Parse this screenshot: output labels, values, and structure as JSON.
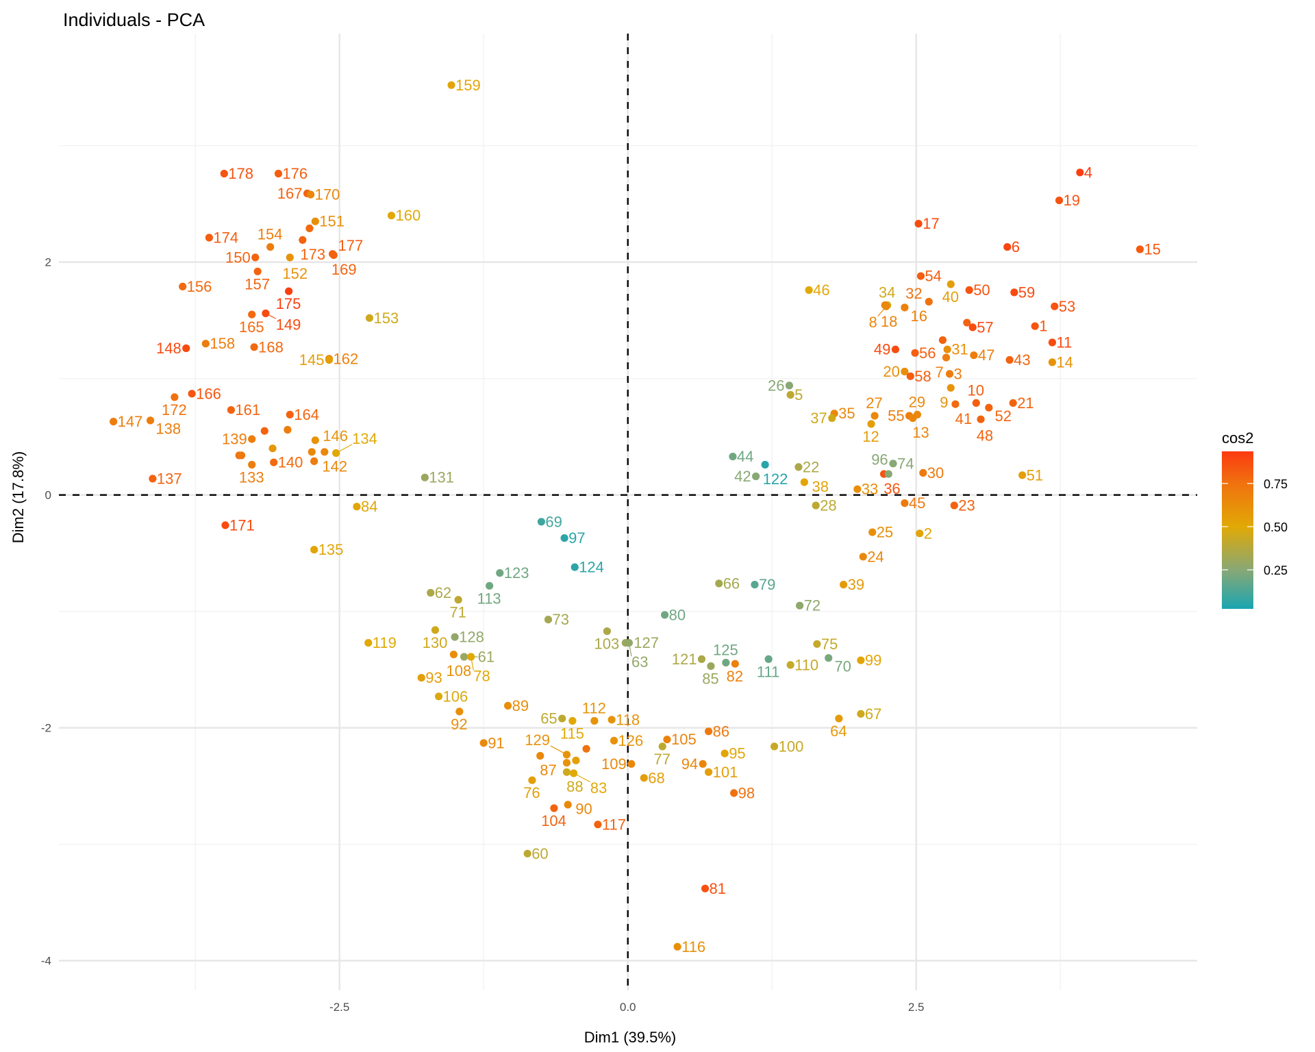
{
  "chart_data": {
    "type": "scatter",
    "title": "Individuals - PCA",
    "xlabel": "Dim1 (39.5%)",
    "ylabel": "Dim2 (17.8%)",
    "xlim": [
      -4.92,
      4.93
    ],
    "ylim": [
      -4.25,
      3.96
    ],
    "x_ticks": [
      {
        "value": -2.5,
        "label": "-2.5"
      },
      {
        "value": 0,
        "label": "0.0"
      },
      {
        "value": 2.5,
        "label": "2.5"
      }
    ],
    "y_ticks": [
      {
        "value": -4,
        "label": "-4"
      },
      {
        "value": -2,
        "label": "-2"
      },
      {
        "value": 0,
        "label": "0"
      },
      {
        "value": 2,
        "label": "2"
      }
    ],
    "x_minor": [
      -3.75,
      -1.25,
      1.25,
      3.75
    ],
    "y_minor": [
      -3,
      -1,
      1,
      3
    ],
    "grid": true,
    "reference_lines": {
      "x": 0,
      "y": 0,
      "style": "dashed"
    },
    "legend": {
      "title": "cos2",
      "placement": "right",
      "range": [
        0.024,
        0.936
      ],
      "ticks": [
        {
          "value": 0.75,
          "label": "0.75"
        },
        {
          "value": 0.5,
          "label": "0.50"
        },
        {
          "value": 0.25,
          "label": "0.25"
        }
      ],
      "colors": [
        {
          "value": 0.024,
          "color": "#1AA5B1"
        },
        {
          "value": 0.25,
          "color": "#88A875"
        },
        {
          "value": 0.5,
          "color": "#E1A906"
        },
        {
          "value": 0.75,
          "color": "#F0720F"
        },
        {
          "value": 0.936,
          "color": "#FC3A10"
        }
      ]
    },
    "points": [
      [
        "4",
        3.92,
        2.77,
        0.92
      ],
      [
        "19",
        3.74,
        2.53,
        0.85
      ],
      [
        "15",
        4.44,
        2.11,
        0.83
      ],
      [
        "6",
        3.29,
        2.13,
        0.9
      ],
      [
        "17",
        2.52,
        2.33,
        0.88
      ],
      [
        "54",
        2.54,
        1.88,
        0.82
      ],
      [
        "40",
        2.8,
        1.81,
        0.55
      ],
      [
        "50",
        2.96,
        1.76,
        0.85
      ],
      [
        "59",
        3.35,
        1.74,
        0.88
      ],
      [
        "53",
        3.7,
        1.62,
        0.85
      ],
      [
        "46",
        1.57,
        1.76,
        0.5
      ],
      [
        "34",
        2.25,
        1.63,
        0.45
      ],
      [
        "18",
        2.23,
        1.63,
        0.68
      ],
      [
        "8",
        2.24,
        1.62,
        0.65
      ],
      [
        "16",
        2.4,
        1.61,
        0.68
      ],
      [
        "32",
        2.61,
        1.66,
        0.75
      ],
      [
        "",
        2.94,
        1.48,
        0.8
      ],
      [
        "57",
        2.99,
        1.44,
        0.88
      ],
      [
        "1",
        3.53,
        1.45,
        0.85
      ],
      [
        "11",
        3.68,
        1.31,
        0.88
      ],
      [
        "43",
        3.31,
        1.16,
        0.8
      ],
      [
        "14",
        3.68,
        1.14,
        0.6
      ],
      [
        "49",
        2.32,
        1.25,
        0.88
      ],
      [
        "56",
        2.49,
        1.22,
        0.82
      ],
      [
        "",
        2.73,
        1.33,
        0.8
      ],
      [
        "31",
        2.77,
        1.25,
        0.62
      ],
      [
        "7",
        2.76,
        1.18,
        0.7
      ],
      [
        "20",
        2.4,
        1.06,
        0.62
      ],
      [
        "58",
        2.45,
        1.02,
        0.82
      ],
      [
        "3",
        2.79,
        1.04,
        0.7
      ],
      [
        "47",
        3.0,
        1.2,
        0.7
      ],
      [
        "9",
        2.8,
        0.92,
        0.6
      ],
      [
        "41",
        2.84,
        0.78,
        0.78
      ],
      [
        "10",
        3.02,
        0.79,
        0.82
      ],
      [
        "52",
        3.13,
        0.75,
        0.8
      ],
      [
        "21",
        3.34,
        0.79,
        0.8
      ],
      [
        "48",
        3.06,
        0.65,
        0.8
      ],
      [
        "55",
        2.44,
        0.68,
        0.7
      ],
      [
        "29",
        2.51,
        0.69,
        0.65
      ],
      [
        "13",
        2.47,
        0.66,
        0.66
      ],
      [
        "27",
        2.14,
        0.68,
        0.65
      ],
      [
        "12",
        2.11,
        0.61,
        0.55
      ],
      [
        "26",
        1.4,
        0.94,
        0.25
      ],
      [
        "5",
        1.41,
        0.86,
        0.4
      ],
      [
        "35",
        1.79,
        0.7,
        0.65
      ],
      [
        "37",
        1.77,
        0.66,
        0.45
      ],
      [
        "44",
        0.91,
        0.33,
        0.2
      ],
      [
        "122",
        1.19,
        0.26,
        0.05
      ],
      [
        "42",
        1.11,
        0.16,
        0.25
      ],
      [
        "22",
        1.48,
        0.24,
        0.35
      ],
      [
        "38",
        1.53,
        0.11,
        0.52
      ],
      [
        "28",
        1.63,
        -0.09,
        0.4
      ],
      [
        "33",
        1.99,
        0.05,
        0.62
      ],
      [
        "36",
        2.22,
        0.18,
        0.85
      ],
      [
        "96",
        2.26,
        0.18,
        0.25
      ],
      [
        "74",
        2.3,
        0.27,
        0.25
      ],
      [
        "30",
        2.56,
        0.19,
        0.72
      ],
      [
        "45",
        2.4,
        -0.07,
        0.72
      ],
      [
        "23",
        2.83,
        -0.09,
        0.8
      ],
      [
        "2",
        2.53,
        -0.33,
        0.52
      ],
      [
        "51",
        3.42,
        0.17,
        0.55
      ],
      [
        "25",
        2.12,
        -0.32,
        0.62
      ],
      [
        "24",
        2.04,
        -0.53,
        0.65
      ],
      [
        "39",
        1.87,
        -0.77,
        0.57
      ],
      [
        "80",
        0.32,
        -1.03,
        0.2
      ],
      [
        "66",
        0.79,
        -0.76,
        0.33
      ],
      [
        "79",
        1.1,
        -0.77,
        0.15
      ],
      [
        "72",
        1.49,
        -0.95,
        0.27
      ],
      [
        "121",
        0.64,
        -1.41,
        0.35
      ],
      [
        "85",
        0.72,
        -1.47,
        0.3
      ],
      [
        "125",
        0.85,
        -1.44,
        0.2
      ],
      [
        "82",
        0.93,
        -1.45,
        0.68
      ],
      [
        "111",
        1.22,
        -1.41,
        0.18
      ],
      [
        "110",
        1.41,
        -1.46,
        0.42
      ],
      [
        "75",
        1.64,
        -1.28,
        0.42
      ],
      [
        "70",
        1.74,
        -1.4,
        0.22
      ],
      [
        "99",
        2.02,
        -1.42,
        0.52
      ],
      [
        "67",
        2.02,
        -1.88,
        0.45
      ],
      [
        "64",
        1.83,
        -1.92,
        0.57
      ],
      [
        "105",
        0.34,
        -2.1,
        0.68
      ],
      [
        "77",
        0.3,
        -2.16,
        0.4
      ],
      [
        "86",
        0.7,
        -2.03,
        0.72
      ],
      [
        "95",
        0.84,
        -2.22,
        0.52
      ],
      [
        "94",
        0.65,
        -2.31,
        0.66
      ],
      [
        "101",
        0.7,
        -2.38,
        0.55
      ],
      [
        "98",
        0.92,
        -2.56,
        0.75
      ],
      [
        "100",
        1.27,
        -2.16,
        0.43
      ],
      [
        "68",
        0.14,
        -2.43,
        0.55
      ],
      [
        "81",
        0.67,
        -3.38,
        0.86
      ],
      [
        "116",
        0.43,
        -3.88,
        0.62
      ],
      [
        "109",
        0.03,
        -2.31,
        0.65
      ],
      [
        "69",
        -0.75,
        -0.23,
        0.1
      ],
      [
        "97",
        -0.55,
        -0.37,
        0.06
      ],
      [
        "124",
        -0.46,
        -0.62,
        0.06
      ],
      [
        "123",
        -1.11,
        -0.67,
        0.2
      ],
      [
        "113",
        -1.2,
        -0.78,
        0.2
      ],
      [
        "62",
        -1.71,
        -0.84,
        0.35
      ],
      [
        "71",
        -1.47,
        -0.9,
        0.4
      ],
      [
        "130",
        -1.67,
        -1.16,
        0.45
      ],
      [
        "128",
        -1.5,
        -1.22,
        0.28
      ],
      [
        "119",
        -2.25,
        -1.27,
        0.5
      ],
      [
        "108",
        -1.51,
        -1.37,
        0.62
      ],
      [
        "61",
        -1.42,
        -1.39,
        0.3
      ],
      [
        "78",
        -1.36,
        -1.39,
        0.5
      ],
      [
        "93",
        -1.79,
        -1.57,
        0.55
      ],
      [
        "73",
        -0.69,
        -1.07,
        0.33
      ],
      [
        "103",
        -0.18,
        -1.17,
        0.35
      ],
      [
        "127",
        -0.02,
        -1.27,
        0.3
      ],
      [
        "63",
        0.01,
        -1.27,
        0.28
      ],
      [
        "106",
        -1.64,
        -1.73,
        0.48
      ],
      [
        "92",
        -1.46,
        -1.86,
        0.62
      ],
      [
        "89",
        -1.04,
        -1.81,
        0.62
      ],
      [
        "91",
        -1.25,
        -2.13,
        0.65
      ],
      [
        "65",
        -0.57,
        -1.92,
        0.4
      ],
      [
        "115",
        -0.48,
        -1.94,
        0.5
      ],
      [
        "112",
        -0.29,
        -1.94,
        0.6
      ],
      [
        "118",
        -0.14,
        -1.93,
        0.6
      ],
      [
        "126",
        -0.12,
        -2.11,
        0.6
      ],
      [
        "",
        -0.36,
        -2.18,
        0.75
      ],
      [
        "129",
        -0.53,
        -2.23,
        0.6
      ],
      [
        "",
        -0.45,
        -2.28,
        0.55
      ],
      [
        "",
        -0.53,
        -2.3,
        0.6
      ],
      [
        "87",
        -0.76,
        -2.24,
        0.65
      ],
      [
        "88",
        -0.53,
        -2.38,
        0.45
      ],
      [
        "83",
        -0.47,
        -2.39,
        0.5
      ],
      [
        "76",
        -0.83,
        -2.45,
        0.55
      ],
      [
        "104",
        -0.64,
        -2.69,
        0.8
      ],
      [
        "90",
        -0.52,
        -2.66,
        0.65
      ],
      [
        "117",
        -0.26,
        -2.83,
        0.8
      ],
      [
        "60",
        -0.87,
        -3.08,
        0.4
      ],
      [
        "178",
        -3.5,
        2.76,
        0.85
      ],
      [
        "176",
        -3.03,
        2.76,
        0.82
      ],
      [
        "167",
        -2.78,
        2.59,
        0.8
      ],
      [
        "170",
        -2.75,
        2.58,
        0.65
      ],
      [
        "151",
        -2.71,
        2.35,
        0.62
      ],
      [
        "",
        -2.76,
        2.29,
        0.78
      ],
      [
        "173",
        -2.82,
        2.19,
        0.8
      ],
      [
        "174",
        -3.63,
        2.21,
        0.82
      ],
      [
        "154",
        -3.1,
        2.13,
        0.7
      ],
      [
        "152",
        -2.93,
        2.04,
        0.6
      ],
      [
        "177",
        -2.56,
        2.07,
        0.82
      ],
      [
        "169",
        -2.55,
        2.06,
        0.8
      ],
      [
        "150",
        -3.23,
        2.04,
        0.8
      ],
      [
        "157",
        -3.21,
        1.92,
        0.8
      ],
      [
        "175",
        -2.94,
        1.75,
        0.92
      ],
      [
        "156",
        -3.86,
        1.79,
        0.78
      ],
      [
        "165",
        -3.26,
        1.55,
        0.78
      ],
      [
        "149",
        -3.14,
        1.56,
        0.88
      ],
      [
        "158",
        -3.66,
        1.3,
        0.7
      ],
      [
        "148",
        -3.83,
        1.26,
        0.88
      ],
      [
        "168",
        -3.24,
        1.27,
        0.78
      ],
      [
        "162",
        -2.59,
        1.17,
        0.68
      ],
      [
        "145",
        -2.59,
        1.16,
        0.55
      ],
      [
        "166",
        -3.78,
        0.87,
        0.85
      ],
      [
        "172",
        -3.93,
        0.84,
        0.75
      ],
      [
        "147",
        -4.46,
        0.63,
        0.7
      ],
      [
        "138",
        -4.14,
        0.64,
        0.7
      ],
      [
        "161",
        -3.44,
        0.73,
        0.8
      ],
      [
        "164",
        -2.93,
        0.69,
        0.8
      ],
      [
        "",
        -2.95,
        0.56,
        0.7
      ],
      [
        "",
        -3.15,
        0.55,
        0.8
      ],
      [
        "139",
        -3.26,
        0.48,
        0.7
      ],
      [
        "146",
        -2.71,
        0.47,
        0.6
      ],
      [
        "",
        -3.08,
        0.4,
        0.58
      ],
      [
        "",
        -3.37,
        0.34,
        0.75
      ],
      [
        "",
        -3.35,
        0.34,
        0.72
      ],
      [
        "",
        -2.74,
        0.37,
        0.65
      ],
      [
        "142",
        -2.63,
        0.37,
        0.65
      ],
      [
        "134",
        -2.53,
        0.36,
        0.5
      ],
      [
        "133",
        -3.26,
        0.26,
        0.7
      ],
      [
        "140",
        -3.07,
        0.28,
        0.78
      ],
      [
        "",
        -2.72,
        0.29,
        0.7
      ],
      [
        "137",
        -4.12,
        0.14,
        0.8
      ],
      [
        "171",
        -3.49,
        -0.26,
        0.88
      ],
      [
        "135",
        -2.72,
        -0.47,
        0.52
      ],
      [
        "84",
        -2.35,
        -0.1,
        0.52
      ],
      [
        "153",
        -2.24,
        1.52,
        0.45
      ],
      [
        "160",
        -2.05,
        2.4,
        0.5
      ],
      [
        "159",
        -1.53,
        3.52,
        0.52
      ],
      [
        "131",
        -1.76,
        0.15,
        0.3
      ]
    ]
  }
}
